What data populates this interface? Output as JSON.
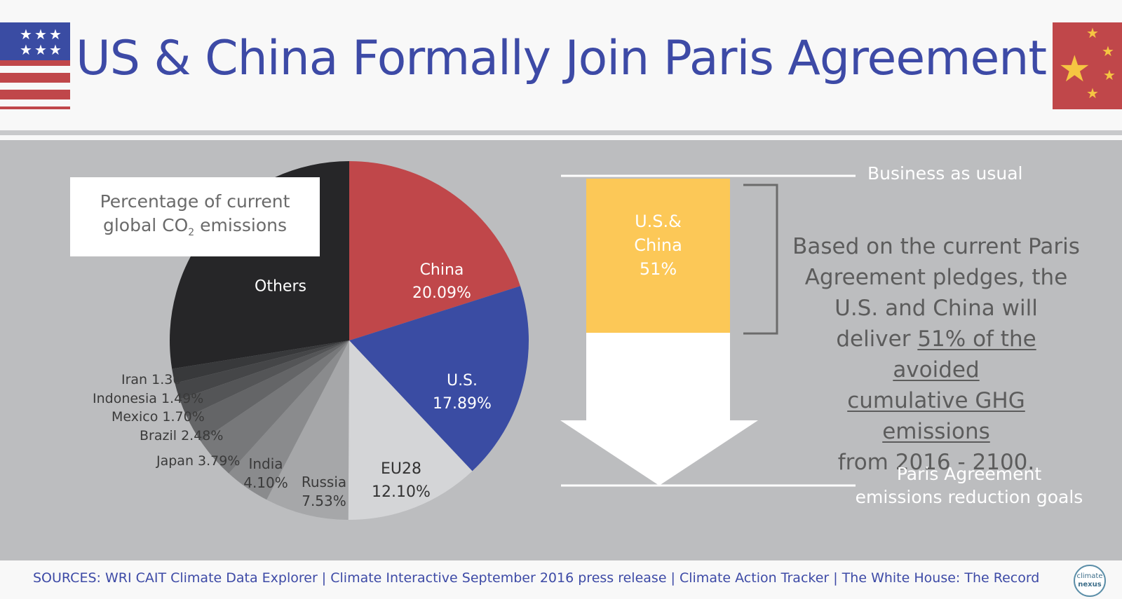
{
  "header": {
    "title": "US & China Formally Join Paris Agreement"
  },
  "colors": {
    "title": "#3d4aa6",
    "china": "#c0474a",
    "us": "#3a4ca3",
    "eu": "#d4d5d7",
    "others": "#262628",
    "panel": "#bcbdbf",
    "yellow": "#fcc857"
  },
  "chart_data": [
    {
      "type": "pie",
      "title": "Percentage of current global CO2 emissions",
      "title_main_line1": "Percentage of current",
      "title_main_line2": "global CO",
      "title_sub": "2",
      "title_after_sub": "emissions",
      "unit": "%",
      "slices": [
        {
          "label": "China",
          "value": 20.09,
          "display": "20.09%",
          "color": "#c0474a"
        },
        {
          "label": "U.S.",
          "value": 17.89,
          "display": "17.89%",
          "color": "#3a4ca3"
        },
        {
          "label": "EU28",
          "value": 12.1,
          "display": "12.10%",
          "color": "#d4d5d7"
        },
        {
          "label": "Russia",
          "value": 7.53,
          "display": "7.53%",
          "color": "#a6a7a9"
        },
        {
          "label": "India",
          "value": 4.1,
          "display": "4.10%",
          "color": "#8a8b8d"
        },
        {
          "label": "Japan",
          "value": 3.79,
          "display": "3.79%",
          "color": "#77787a"
        },
        {
          "label": "Brazil",
          "value": 2.48,
          "display": "2.48%",
          "color": "#646567"
        },
        {
          "label": "Mexico",
          "value": 1.7,
          "display": "1.70%",
          "color": "#545557"
        },
        {
          "label": "Indonesia",
          "value": 1.49,
          "display": "1.49%",
          "color": "#454648"
        },
        {
          "label": "Iran",
          "value": 1.3,
          "display": "1.30",
          "color": "#38393b"
        },
        {
          "label": "Others",
          "value": 27.53,
          "display": "",
          "color": "#262628"
        }
      ]
    },
    {
      "type": "bar",
      "levels": [
        "Business as usual",
        "Paris Agreement emissions reduction goals"
      ],
      "bar_label_line1": "U.S.&",
      "bar_label_line2": "China",
      "bar_label_line3": "51%",
      "value": 51
    }
  ],
  "right": {
    "bau_label": "Business as usual",
    "paris_line1": "Paris Agreement",
    "paris_line2": "emissions reduction goals",
    "text_line1": "Based on the current Paris",
    "text_line2": "Agreement pledges, the",
    "text_line3": "U.S. and China will",
    "text_line4_pre": "deliver",
    "text_line4_u": "51% of the avoided",
    "text_line5_u": "cumulative GHG emissions",
    "text_line6": "from 2016 - 2100."
  },
  "footer": {
    "sources": "SOURCES: WRI CAIT Climate Data Explorer | Climate Interactive September 2016 press release | Climate Action Tracker | The White House: The Record",
    "logo_top": "climate",
    "logo_bottom": "nexus"
  }
}
